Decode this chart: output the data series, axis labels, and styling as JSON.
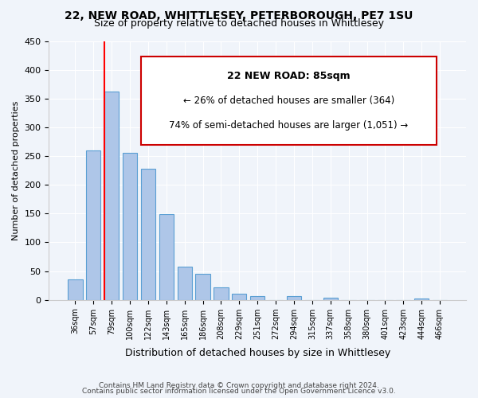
{
  "title1": "22, NEW ROAD, WHITTLESEY, PETERBOROUGH, PE7 1SU",
  "title2": "Size of property relative to detached houses in Whittlesey",
  "xlabel": "Distribution of detached houses by size in Whittlesey",
  "ylabel": "Number of detached properties",
  "bar_color": "#aec6e8",
  "bar_edge_color": "#5a9fd4",
  "bins": [
    "36sqm",
    "57sqm",
    "79sqm",
    "100sqm",
    "122sqm",
    "143sqm",
    "165sqm",
    "186sqm",
    "208sqm",
    "229sqm",
    "251sqm",
    "272sqm",
    "294sqm",
    "315sqm",
    "337sqm",
    "358sqm",
    "380sqm",
    "401sqm",
    "423sqm",
    "444sqm",
    "466sqm"
  ],
  "values": [
    35,
    260,
    362,
    256,
    228,
    149,
    57,
    45,
    21,
    11,
    6,
    0,
    6,
    0,
    3,
    0,
    0,
    0,
    0,
    2,
    0
  ],
  "ylim": [
    0,
    450
  ],
  "yticks": [
    0,
    50,
    100,
    150,
    200,
    250,
    300,
    350,
    400,
    450
  ],
  "property_line_label": "22 NEW ROAD: 85sqm",
  "annotation_line1": "← 26% of detached houses are smaller (364)",
  "annotation_line2": "74% of semi-detached houses are larger (1,051) →",
  "box_edge_color": "#cc0000",
  "footer1": "Contains HM Land Registry data © Crown copyright and database right 2024.",
  "footer2": "Contains public sector information licensed under the Open Government Licence v3.0.",
  "background_color": "#f0f4fa"
}
